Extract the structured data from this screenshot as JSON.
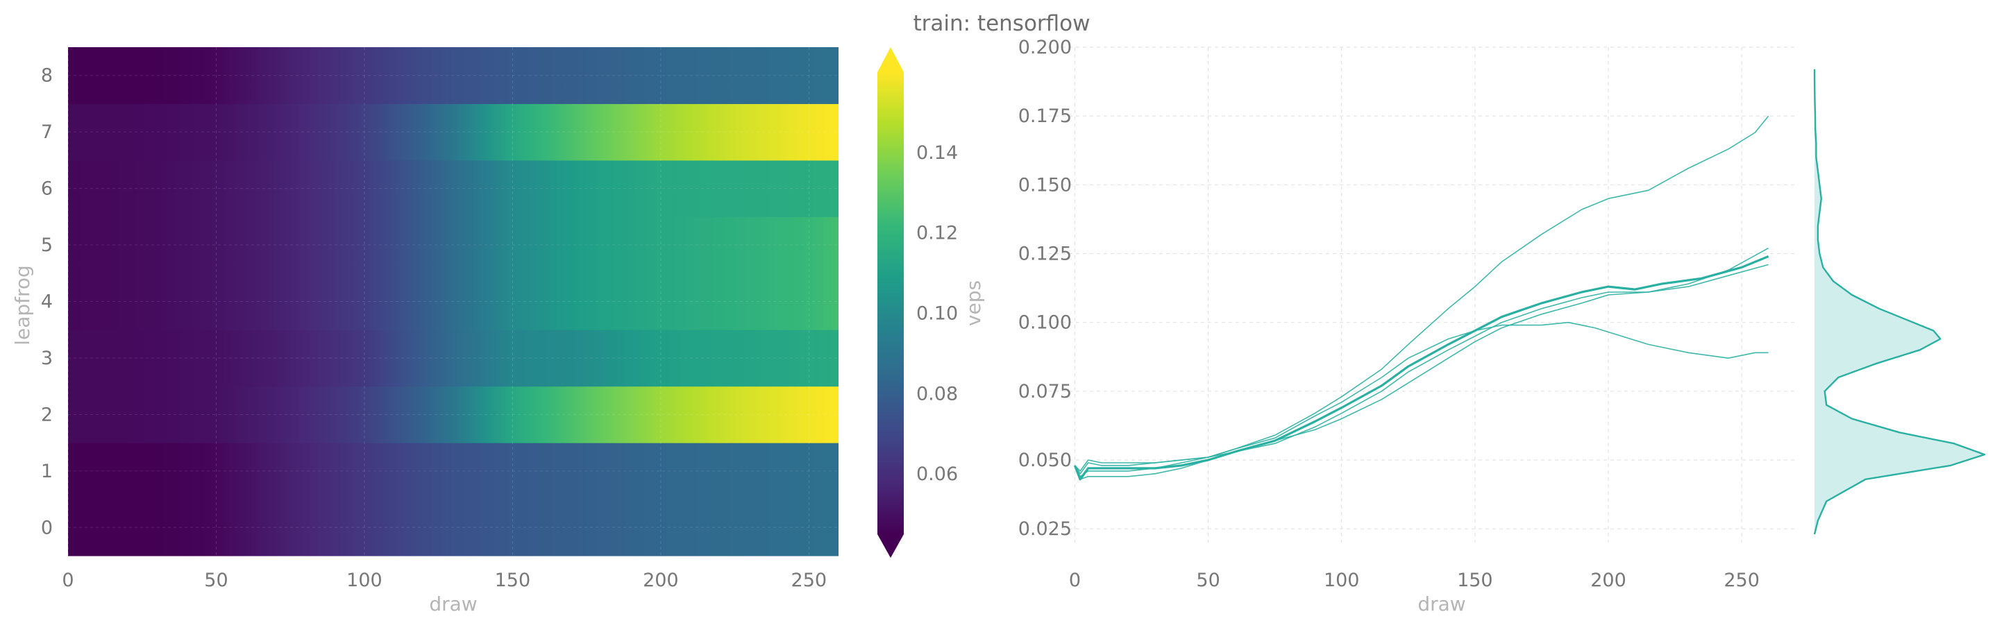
{
  "title": "train: tensorflow",
  "chart_data": [
    {
      "type": "heatmap",
      "xlabel": "draw",
      "ylabel": "leapfrog",
      "xlim": [
        0,
        260
      ],
      "xticks": [
        0,
        50,
        100,
        150,
        200,
        250
      ],
      "yticks": [
        0,
        1,
        2,
        3,
        4,
        5,
        6,
        7,
        8
      ],
      "rows": [
        0,
        1,
        2,
        3,
        4,
        5,
        6,
        7,
        8
      ],
      "draw_points": [
        0,
        25,
        50,
        75,
        100,
        125,
        150,
        175,
        200,
        225,
        250,
        260
      ],
      "row_values": [
        [
          0.045,
          0.044,
          0.047,
          0.055,
          0.064,
          0.073,
          0.077,
          0.08,
          0.083,
          0.085,
          0.087,
          0.088
        ],
        [
          0.045,
          0.044,
          0.047,
          0.055,
          0.064,
          0.073,
          0.077,
          0.08,
          0.083,
          0.085,
          0.087,
          0.088
        ],
        [
          0.048,
          0.048,
          0.05,
          0.056,
          0.067,
          0.085,
          0.114,
          0.13,
          0.143,
          0.152,
          0.158,
          0.16
        ],
        [
          0.048,
          0.048,
          0.05,
          0.055,
          0.064,
          0.082,
          0.098,
          0.101,
          0.11,
          0.112,
          0.114,
          0.115
        ],
        [
          0.047,
          0.048,
          0.051,
          0.056,
          0.066,
          0.082,
          0.1,
          0.11,
          0.114,
          0.118,
          0.122,
          0.125
        ],
        [
          0.047,
          0.048,
          0.051,
          0.056,
          0.066,
          0.082,
          0.1,
          0.11,
          0.114,
          0.118,
          0.122,
          0.125
        ],
        [
          0.047,
          0.048,
          0.051,
          0.056,
          0.066,
          0.082,
          0.1,
          0.11,
          0.114,
          0.115,
          0.116,
          0.117
        ],
        [
          0.048,
          0.048,
          0.05,
          0.056,
          0.067,
          0.085,
          0.114,
          0.13,
          0.143,
          0.152,
          0.158,
          0.16
        ],
        [
          0.045,
          0.044,
          0.047,
          0.055,
          0.064,
          0.073,
          0.077,
          0.08,
          0.083,
          0.085,
          0.087,
          0.088
        ]
      ],
      "colorbar": {
        "label": "veps",
        "colormap": "viridis",
        "range": [
          0.045,
          0.16
        ],
        "ticks": [
          0.06,
          0.08,
          0.1,
          0.12,
          0.14
        ],
        "tick_labels": [
          "0.06",
          "0.08",
          "0.10",
          "0.12",
          "0.14"
        ],
        "extend": "both"
      }
    },
    {
      "type": "line",
      "xlabel": "draw",
      "ylabel": "",
      "xlim": [
        -10,
        270
      ],
      "ylim": [
        0.02,
        0.2
      ],
      "xticks": [
        0,
        50,
        100,
        150,
        200,
        250
      ],
      "yticks": [
        0.025,
        0.05,
        0.075,
        0.1,
        0.125,
        0.15,
        0.175,
        0.2
      ],
      "ytick_labels": [
        "0.025",
        "0.050",
        "0.075",
        "0.100",
        "0.125",
        "0.150",
        "0.175",
        "0.200"
      ],
      "grid": true,
      "color": "#2ab0a2",
      "series": [
        {
          "x": [
            0,
            2,
            5,
            10,
            20,
            30,
            40,
            50,
            60,
            75,
            90,
            100,
            115,
            125,
            140,
            150,
            160,
            175,
            190,
            200,
            210,
            220,
            235,
            250,
            260
          ],
          "y": [
            0.048,
            0.043,
            0.047,
            0.047,
            0.047,
            0.047,
            0.048,
            0.05,
            0.053,
            0.057,
            0.064,
            0.069,
            0.077,
            0.084,
            0.092,
            0.097,
            0.102,
            0.107,
            0.111,
            0.113,
            0.112,
            0.114,
            0.116,
            0.12,
            0.124
          ],
          "width": "mean"
        },
        {
          "x": [
            0,
            2,
            5,
            10,
            20,
            30,
            40,
            50,
            60,
            75,
            90,
            100,
            115,
            125,
            140,
            150,
            160,
            175,
            190,
            200,
            215,
            230,
            245,
            255,
            260
          ],
          "y": [
            0.048,
            0.046,
            0.05,
            0.049,
            0.049,
            0.049,
            0.05,
            0.051,
            0.054,
            0.059,
            0.067,
            0.073,
            0.083,
            0.092,
            0.105,
            0.113,
            0.122,
            0.132,
            0.141,
            0.145,
            0.148,
            0.156,
            0.163,
            0.169,
            0.175
          ]
        },
        {
          "x": [
            0,
            2,
            5,
            10,
            20,
            30,
            40,
            50,
            60,
            75,
            90,
            100,
            115,
            125,
            140,
            150,
            160,
            175,
            185,
            195,
            205,
            215,
            230,
            245,
            255,
            260
          ],
          "y": [
            0.048,
            0.045,
            0.049,
            0.048,
            0.048,
            0.049,
            0.05,
            0.051,
            0.054,
            0.058,
            0.066,
            0.071,
            0.08,
            0.087,
            0.094,
            0.097,
            0.099,
            0.099,
            0.1,
            0.098,
            0.095,
            0.092,
            0.089,
            0.087,
            0.089,
            0.089
          ]
        },
        {
          "x": [
            0,
            2,
            5,
            10,
            20,
            30,
            40,
            50,
            60,
            75,
            90,
            100,
            115,
            125,
            140,
            150,
            160,
            175,
            190,
            200,
            215,
            230,
            245,
            260
          ],
          "y": [
            0.048,
            0.044,
            0.046,
            0.046,
            0.046,
            0.047,
            0.049,
            0.051,
            0.053,
            0.056,
            0.062,
            0.067,
            0.075,
            0.082,
            0.09,
            0.095,
            0.1,
            0.105,
            0.109,
            0.111,
            0.111,
            0.113,
            0.117,
            0.121
          ]
        },
        {
          "x": [
            0,
            2,
            5,
            10,
            20,
            30,
            40,
            50,
            60,
            75,
            90,
            100,
            115,
            125,
            140,
            150,
            160,
            175,
            190,
            200,
            215,
            230,
            245,
            260
          ],
          "y": [
            0.048,
            0.043,
            0.044,
            0.044,
            0.044,
            0.045,
            0.047,
            0.05,
            0.053,
            0.057,
            0.061,
            0.065,
            0.072,
            0.078,
            0.087,
            0.093,
            0.098,
            0.103,
            0.107,
            0.11,
            0.111,
            0.114,
            0.119,
            0.127
          ]
        }
      ]
    },
    {
      "type": "area",
      "orientation": "horizontal",
      "description": "kernel density of veps",
      "color": "#2ab0a2",
      "y": [
        0.023,
        0.028,
        0.035,
        0.043,
        0.048,
        0.052,
        0.056,
        0.06,
        0.065,
        0.07,
        0.075,
        0.08,
        0.085,
        0.09,
        0.094,
        0.097,
        0.1,
        0.105,
        0.11,
        0.115,
        0.12,
        0.125,
        0.13,
        0.135,
        0.14,
        0.145,
        0.15,
        0.155,
        0.16,
        0.165,
        0.17,
        0.175,
        0.18,
        0.185,
        0.192
      ],
      "density": [
        0.0,
        0.02,
        0.07,
        0.3,
        0.8,
        1.0,
        0.82,
        0.5,
        0.22,
        0.07,
        0.06,
        0.14,
        0.36,
        0.62,
        0.74,
        0.7,
        0.58,
        0.38,
        0.22,
        0.11,
        0.05,
        0.03,
        0.02,
        0.02,
        0.03,
        0.04,
        0.03,
        0.02,
        0.01,
        0.01,
        0.005,
        0.004,
        0.002,
        0.001,
        0.0
      ]
    }
  ]
}
